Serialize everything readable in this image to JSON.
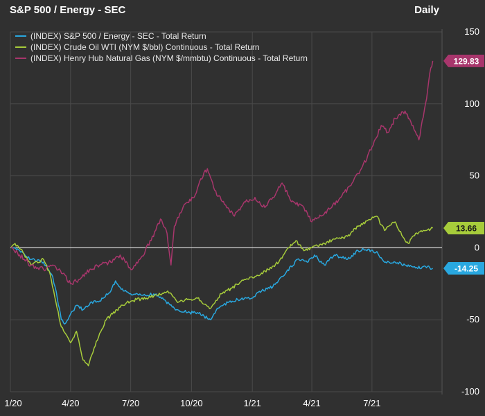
{
  "header": {
    "title": "S&P 500 / Energy - SEC",
    "frequency": "Daily"
  },
  "chart_data": {
    "type": "line",
    "title": "S&P 500 / Energy - SEC",
    "xlabel": "",
    "ylabel": "",
    "ylim": [
      -100,
      150
    ],
    "xlim": [
      "2020-01-01",
      "2021-10-15"
    ],
    "y_ticks": [
      -100,
      -50,
      0,
      50,
      100,
      150
    ],
    "x_ticks": [
      {
        "label": "1/20",
        "date": "2020-01-01"
      },
      {
        "label": "4/20",
        "date": "2020-04-01"
      },
      {
        "label": "7/20",
        "date": "2020-07-01"
      },
      {
        "label": "10/20",
        "date": "2020-10-01"
      },
      {
        "label": "1/21",
        "date": "2021-01-01"
      },
      {
        "label": "4/21",
        "date": "2021-04-01"
      },
      {
        "label": "7/21",
        "date": "2021-07-01"
      }
    ],
    "grid": true,
    "legend_position": "top-left",
    "series": [
      {
        "name": "(INDEX) S&P 500 / Energy - SEC - Total Return",
        "color": "#29a8e0",
        "last_value": "-14.25",
        "points": [
          [
            "2020-01-02",
            0
          ],
          [
            "2020-01-15",
            -2
          ],
          [
            "2020-02-01",
            -8
          ],
          [
            "2020-02-20",
            -10
          ],
          [
            "2020-03-05",
            -20
          ],
          [
            "2020-03-12",
            -35
          ],
          [
            "2020-03-18",
            -50
          ],
          [
            "2020-03-23",
            -53
          ],
          [
            "2020-04-01",
            -46
          ],
          [
            "2020-04-10",
            -40
          ],
          [
            "2020-04-20",
            -43
          ],
          [
            "2020-05-01",
            -38
          ],
          [
            "2020-05-15",
            -37
          ],
          [
            "2020-06-01",
            -30
          ],
          [
            "2020-06-08",
            -23
          ],
          [
            "2020-06-20",
            -30
          ],
          [
            "2020-07-01",
            -32
          ],
          [
            "2020-07-20",
            -33
          ],
          [
            "2020-08-05",
            -32
          ],
          [
            "2020-08-20",
            -36
          ],
          [
            "2020-09-05",
            -42
          ],
          [
            "2020-09-25",
            -45
          ],
          [
            "2020-10-10",
            -45
          ],
          [
            "2020-10-30",
            -50
          ],
          [
            "2020-11-09",
            -42
          ],
          [
            "2020-11-25",
            -38
          ],
          [
            "2020-12-10",
            -36
          ],
          [
            "2020-12-31",
            -35
          ],
          [
            "2021-01-15",
            -30
          ],
          [
            "2021-02-01",
            -27
          ],
          [
            "2021-02-20",
            -18
          ],
          [
            "2021-03-10",
            -8
          ],
          [
            "2021-03-25",
            -10
          ],
          [
            "2021-04-05",
            -5
          ],
          [
            "2021-04-20",
            -12
          ],
          [
            "2021-05-05",
            -5
          ],
          [
            "2021-05-25",
            -8
          ],
          [
            "2021-06-10",
            -2
          ],
          [
            "2021-06-25",
            -1
          ],
          [
            "2021-07-10",
            -4
          ],
          [
            "2021-07-20",
            -10
          ],
          [
            "2021-08-05",
            -10
          ],
          [
            "2021-08-20",
            -12
          ],
          [
            "2021-09-05",
            -14
          ],
          [
            "2021-09-20",
            -13
          ],
          [
            "2021-10-01",
            -14.25
          ]
        ]
      },
      {
        "name": "(INDEX) Crude Oil WTI (NYM $/bbl) Continuous - Total Return",
        "color": "#a7cc3b",
        "last_value": "13.66",
        "points": [
          [
            "2020-01-02",
            0
          ],
          [
            "2020-01-08",
            3
          ],
          [
            "2020-01-20",
            -3
          ],
          [
            "2020-02-01",
            -12
          ],
          [
            "2020-02-20",
            -8
          ],
          [
            "2020-03-01",
            -18
          ],
          [
            "2020-03-10",
            -38
          ],
          [
            "2020-03-18",
            -55
          ],
          [
            "2020-03-25",
            -60
          ],
          [
            "2020-04-01",
            -66
          ],
          [
            "2020-04-10",
            -58
          ],
          [
            "2020-04-20",
            -78
          ],
          [
            "2020-04-28",
            -82
          ],
          [
            "2020-05-10",
            -65
          ],
          [
            "2020-05-25",
            -50
          ],
          [
            "2020-06-10",
            -43
          ],
          [
            "2020-06-25",
            -38
          ],
          [
            "2020-07-10",
            -36
          ],
          [
            "2020-07-25",
            -35
          ],
          [
            "2020-08-10",
            -33
          ],
          [
            "2020-08-26",
            -30
          ],
          [
            "2020-09-10",
            -38
          ],
          [
            "2020-09-25",
            -36
          ],
          [
            "2020-10-10",
            -35
          ],
          [
            "2020-10-30",
            -42
          ],
          [
            "2020-11-15",
            -32
          ],
          [
            "2020-12-01",
            -28
          ],
          [
            "2020-12-20",
            -22
          ],
          [
            "2021-01-05",
            -20
          ],
          [
            "2021-01-25",
            -15
          ],
          [
            "2021-02-10",
            -10
          ],
          [
            "2021-02-25",
            0
          ],
          [
            "2021-03-08",
            5
          ],
          [
            "2021-03-20",
            -2
          ],
          [
            "2021-04-01",
            0
          ],
          [
            "2021-04-20",
            3
          ],
          [
            "2021-05-05",
            6
          ],
          [
            "2021-05-25",
            8
          ],
          [
            "2021-06-10",
            15
          ],
          [
            "2021-06-30",
            20
          ],
          [
            "2021-07-08",
            22
          ],
          [
            "2021-07-20",
            12
          ],
          [
            "2021-08-05",
            18
          ],
          [
            "2021-08-20",
            5
          ],
          [
            "2021-08-25",
            3
          ],
          [
            "2021-09-05",
            10
          ],
          [
            "2021-09-20",
            12
          ],
          [
            "2021-10-01",
            13.66
          ]
        ]
      },
      {
        "name": "(INDEX) Henry Hub Natural Gas (NYM $/mmbtu) Continuous - Total Return",
        "color": "#a8366c",
        "last_value": "129.83",
        "points": [
          [
            "2020-01-02",
            0
          ],
          [
            "2020-01-15",
            -5
          ],
          [
            "2020-02-01",
            -12
          ],
          [
            "2020-02-20",
            -15
          ],
          [
            "2020-03-05",
            -12
          ],
          [
            "2020-03-20",
            -18
          ],
          [
            "2020-04-01",
            -25
          ],
          [
            "2020-04-15",
            -22
          ],
          [
            "2020-04-30",
            -15
          ],
          [
            "2020-05-15",
            -12
          ],
          [
            "2020-06-01",
            -10
          ],
          [
            "2020-06-15",
            -5
          ],
          [
            "2020-07-01",
            -15
          ],
          [
            "2020-07-15",
            -8
          ],
          [
            "2020-08-01",
            5
          ],
          [
            "2020-08-15",
            20
          ],
          [
            "2020-08-25",
            10
          ],
          [
            "2020-08-31",
            -12
          ],
          [
            "2020-09-05",
            15
          ],
          [
            "2020-09-20",
            30
          ],
          [
            "2020-10-05",
            35
          ],
          [
            "2020-10-15",
            48
          ],
          [
            "2020-10-25",
            55
          ],
          [
            "2020-11-05",
            40
          ],
          [
            "2020-11-20",
            30
          ],
          [
            "2020-12-05",
            22
          ],
          [
            "2020-12-20",
            32
          ],
          [
            "2021-01-05",
            35
          ],
          [
            "2021-01-20",
            28
          ],
          [
            "2021-02-01",
            35
          ],
          [
            "2021-02-15",
            45
          ],
          [
            "2021-03-01",
            32
          ],
          [
            "2021-03-20",
            28
          ],
          [
            "2021-04-01",
            18
          ],
          [
            "2021-04-15",
            22
          ],
          [
            "2021-05-01",
            28
          ],
          [
            "2021-05-15",
            35
          ],
          [
            "2021-06-01",
            45
          ],
          [
            "2021-06-15",
            55
          ],
          [
            "2021-07-01",
            70
          ],
          [
            "2021-07-15",
            85
          ],
          [
            "2021-07-25",
            80
          ],
          [
            "2021-08-05",
            90
          ],
          [
            "2021-08-20",
            95
          ],
          [
            "2021-09-01",
            85
          ],
          [
            "2021-09-10",
            75
          ],
          [
            "2021-09-20",
            100
          ],
          [
            "2021-09-28",
            125
          ],
          [
            "2021-10-01",
            129.83
          ]
        ]
      }
    ]
  }
}
